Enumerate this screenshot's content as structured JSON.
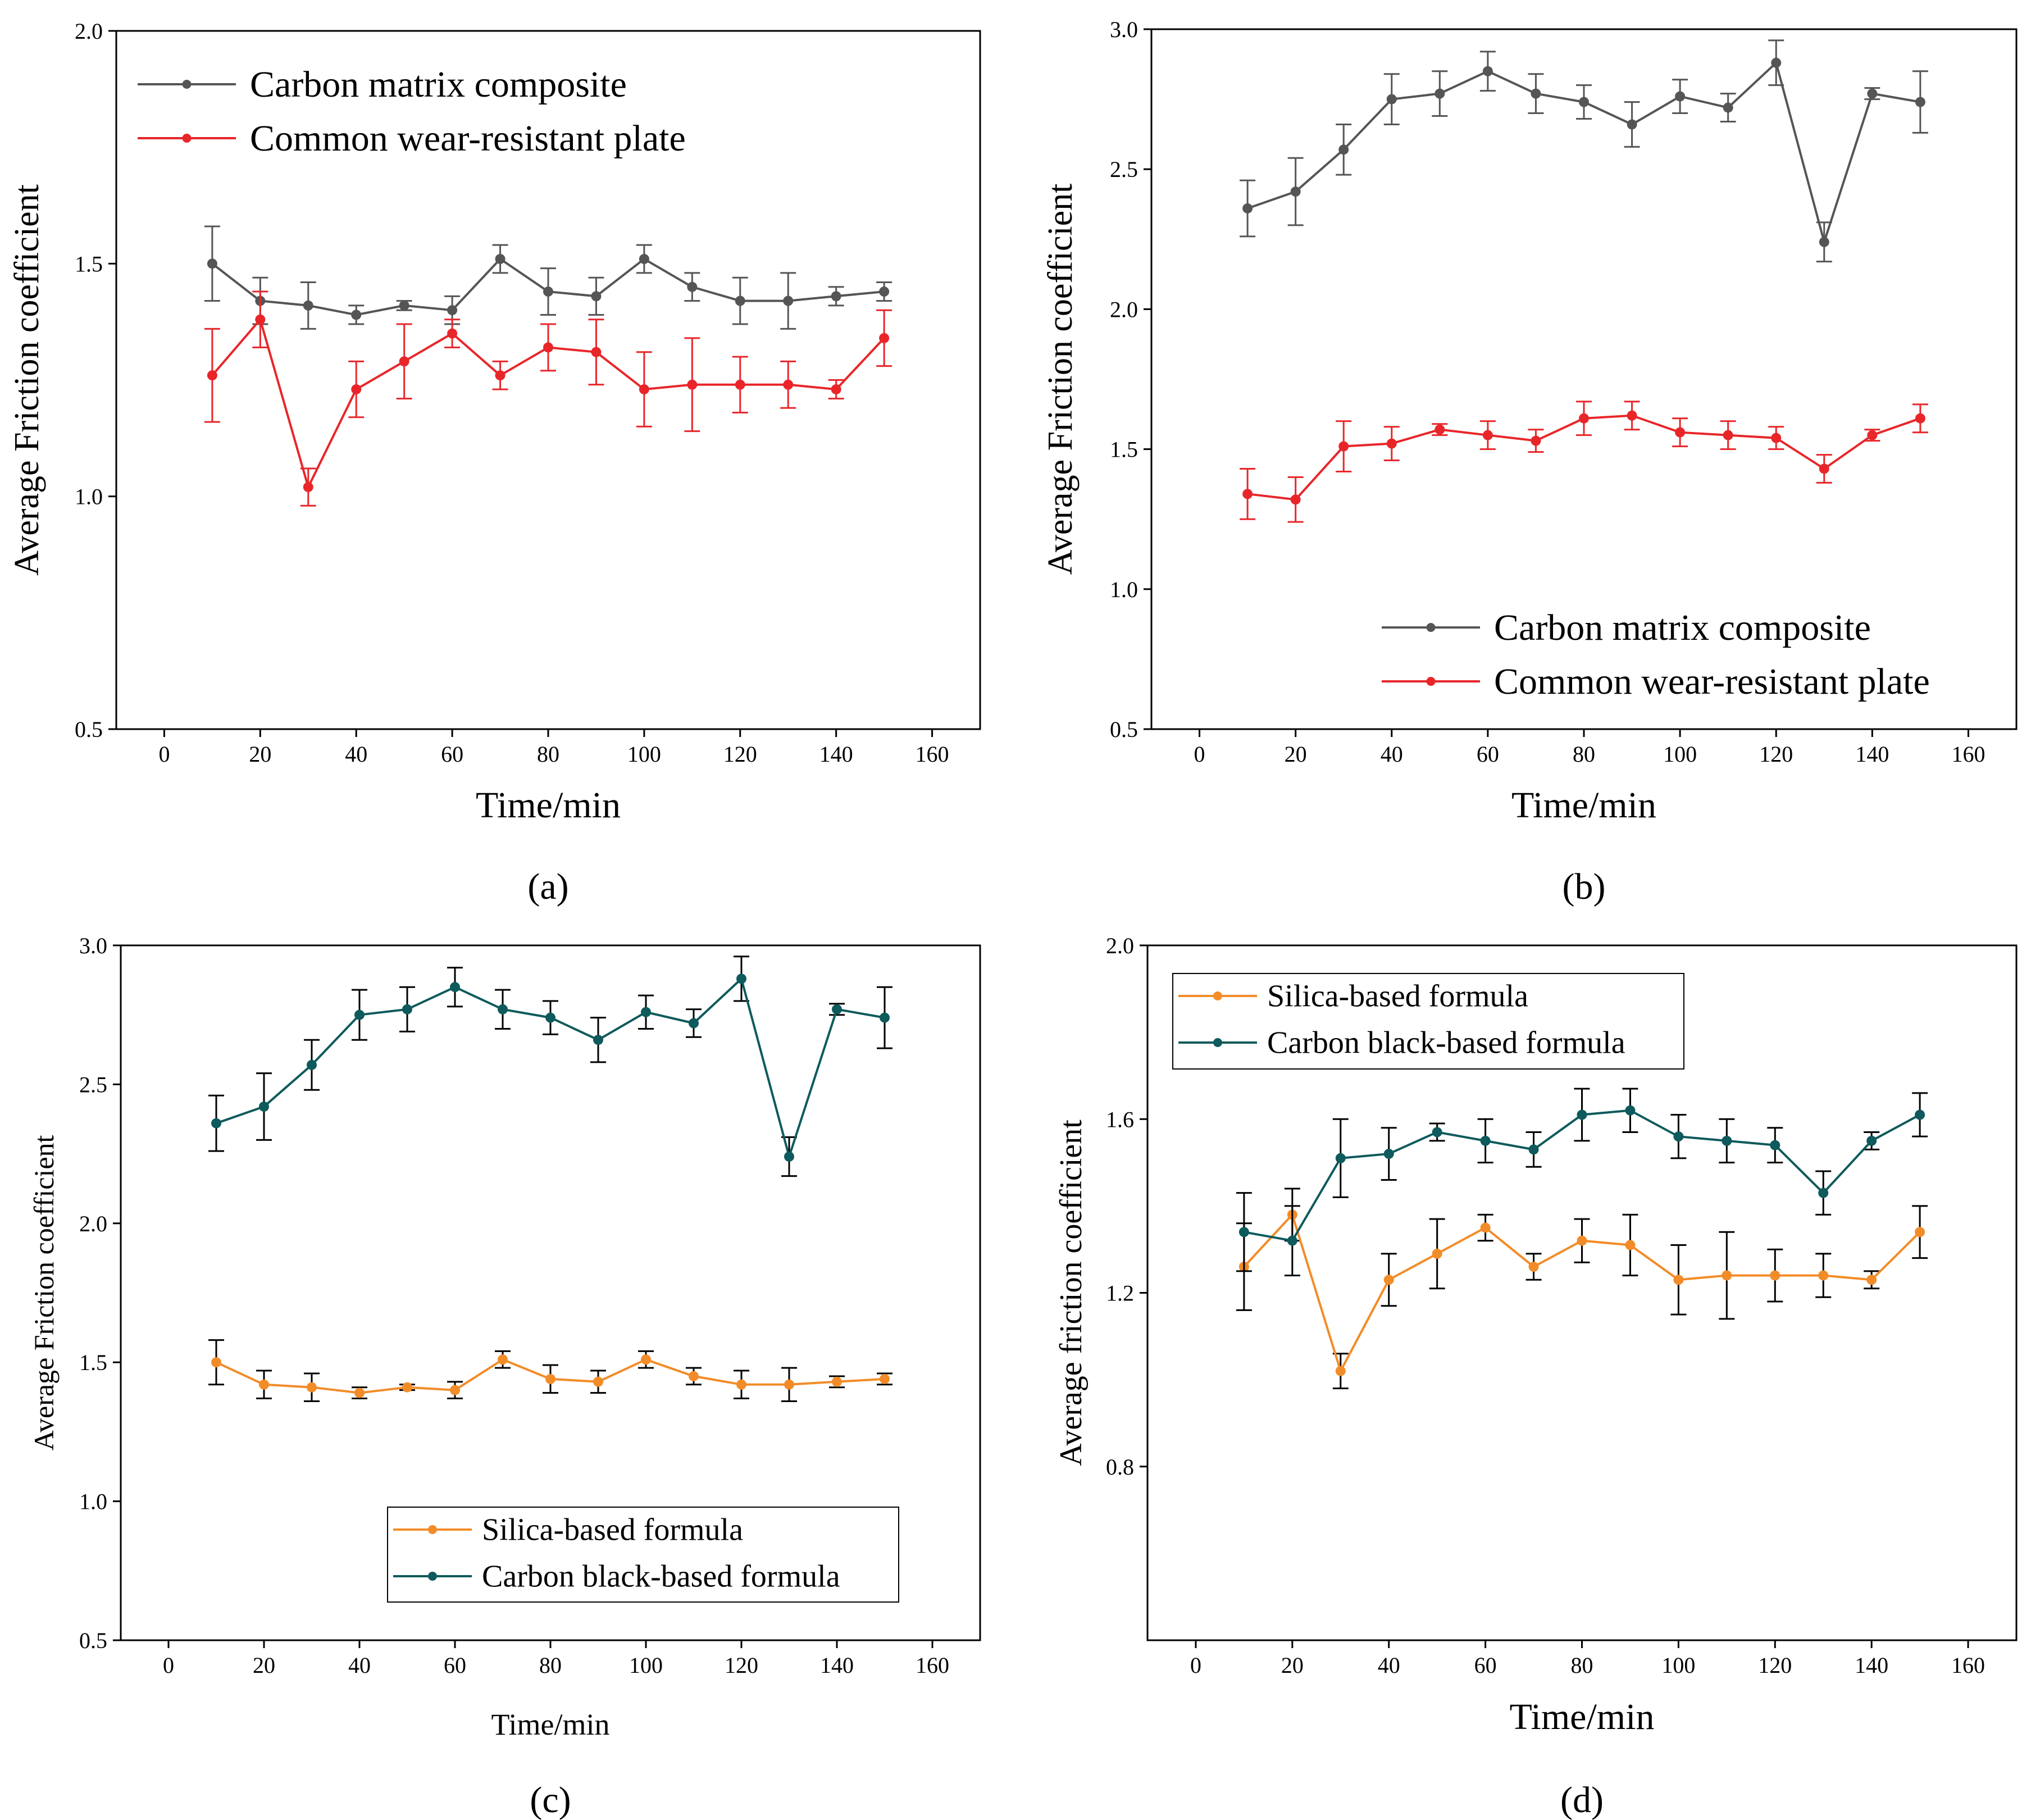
{
  "figure": {
    "panel_labels": [
      "(a)",
      "(b)",
      "(c)",
      "(d)"
    ]
  },
  "chart_data": [
    {
      "type": "line",
      "panel": "a",
      "xlabel": "Time/min",
      "ylabel": "Average Friction coefficient",
      "xlim": [
        -10,
        170
      ],
      "ylim": [
        0.5,
        2.0
      ],
      "xticks": [
        0,
        20,
        40,
        60,
        80,
        100,
        120,
        140,
        160
      ],
      "yticks": [
        0.5,
        1.0,
        1.5,
        2.0
      ],
      "ytick_labels": [
        "0.5",
        "1.0",
        "1.5",
        "2.0"
      ],
      "legend_position": "top-left",
      "legend_boxed": false,
      "x": [
        10,
        20,
        30,
        40,
        50,
        60,
        70,
        80,
        90,
        100,
        110,
        120,
        130,
        140,
        150
      ],
      "series": [
        {
          "name": "Carbon matrix composite",
          "color": "#555555",
          "values": [
            1.5,
            1.42,
            1.41,
            1.39,
            1.41,
            1.4,
            1.51,
            1.44,
            1.43,
            1.51,
            1.45,
            1.42,
            1.42,
            1.43,
            1.44
          ],
          "errors": [
            0.08,
            0.05,
            0.05,
            0.02,
            0.01,
            0.03,
            0.03,
            0.05,
            0.04,
            0.03,
            0.03,
            0.05,
            0.06,
            0.02,
            0.02
          ]
        },
        {
          "name": "Common wear-resistant plate",
          "color": "#e8262a",
          "values": [
            1.26,
            1.38,
            1.02,
            1.23,
            1.29,
            1.35,
            1.26,
            1.32,
            1.31,
            1.23,
            1.24,
            1.24,
            1.24,
            1.23,
            1.34
          ],
          "errors": [
            0.1,
            0.06,
            0.04,
            0.06,
            0.08,
            0.03,
            0.03,
            0.05,
            0.07,
            0.08,
            0.1,
            0.06,
            0.05,
            0.02,
            0.06
          ]
        }
      ]
    },
    {
      "type": "line",
      "panel": "b",
      "xlabel": "Time/min",
      "ylabel": "Average Friction coefficient",
      "xlim": [
        -10,
        170
      ],
      "ylim": [
        0.5,
        3.0
      ],
      "xticks": [
        0,
        20,
        40,
        60,
        80,
        100,
        120,
        140,
        160
      ],
      "yticks": [
        0.5,
        1.0,
        1.5,
        2.0,
        2.5,
        3.0
      ],
      "ytick_labels": [
        "0.5",
        "1.0",
        "1.5",
        "2.0",
        "2.5",
        "3.0"
      ],
      "legend_position": "bottom-right",
      "legend_boxed": false,
      "x": [
        10,
        20,
        30,
        40,
        50,
        60,
        70,
        80,
        90,
        100,
        110,
        120,
        130,
        140,
        150
      ],
      "series": [
        {
          "name": "Carbon matrix composite",
          "color": "#555555",
          "values": [
            2.36,
            2.42,
            2.57,
            2.75,
            2.77,
            2.85,
            2.77,
            2.74,
            2.66,
            2.76,
            2.72,
            2.88,
            2.24,
            2.77,
            2.74
          ],
          "errors": [
            0.1,
            0.12,
            0.09,
            0.09,
            0.08,
            0.07,
            0.07,
            0.06,
            0.08,
            0.06,
            0.05,
            0.08,
            0.07,
            0.02,
            0.11
          ]
        },
        {
          "name": "Common wear-resistant plate",
          "color": "#e8262a",
          "values": [
            1.34,
            1.32,
            1.51,
            1.52,
            1.57,
            1.55,
            1.53,
            1.61,
            1.62,
            1.56,
            1.55,
            1.54,
            1.43,
            1.55,
            1.61
          ],
          "errors": [
            0.09,
            0.08,
            0.09,
            0.06,
            0.02,
            0.05,
            0.04,
            0.06,
            0.05,
            0.05,
            0.05,
            0.04,
            0.05,
            0.02,
            0.05
          ]
        }
      ]
    },
    {
      "type": "line",
      "panel": "c",
      "xlabel": "Time/min",
      "ylabel": "Average Friction coefficient",
      "xlim": [
        -10,
        170
      ],
      "ylim": [
        0.5,
        3.0
      ],
      "xticks": [
        0,
        20,
        40,
        60,
        80,
        100,
        120,
        140,
        160
      ],
      "yticks": [
        0.5,
        1.0,
        1.5,
        2.0,
        2.5,
        3.0
      ],
      "ytick_labels": [
        "0.5",
        "1.0",
        "1.5",
        "2.0",
        "2.5",
        "3.0"
      ],
      "legend_position": "bottom-right",
      "legend_boxed": true,
      "x": [
        10,
        20,
        30,
        40,
        50,
        60,
        70,
        80,
        90,
        100,
        110,
        120,
        130,
        140,
        150
      ],
      "series": [
        {
          "name": "Silica-based formula",
          "color": "#f28c28",
          "values": [
            1.5,
            1.42,
            1.41,
            1.39,
            1.41,
            1.4,
            1.51,
            1.44,
            1.43,
            1.51,
            1.45,
            1.42,
            1.42,
            1.43,
            1.44
          ],
          "errors": [
            0.08,
            0.05,
            0.05,
            0.02,
            0.01,
            0.03,
            0.03,
            0.05,
            0.04,
            0.03,
            0.03,
            0.05,
            0.06,
            0.02,
            0.02
          ]
        },
        {
          "name": "Carbon black-based formula",
          "color": "#0e5a5c",
          "values": [
            2.36,
            2.42,
            2.57,
            2.75,
            2.77,
            2.85,
            2.77,
            2.74,
            2.66,
            2.76,
            2.72,
            2.88,
            2.24,
            2.77,
            2.74
          ],
          "errors": [
            0.1,
            0.12,
            0.09,
            0.09,
            0.08,
            0.07,
            0.07,
            0.06,
            0.08,
            0.06,
            0.05,
            0.08,
            0.07,
            0.02,
            0.11
          ]
        }
      ]
    },
    {
      "type": "line",
      "panel": "d",
      "xlabel": "Time/min",
      "ylabel": "Average friction coefficient",
      "xlim": [
        -10,
        170
      ],
      "ylim": [
        0.4,
        2.0
      ],
      "xticks": [
        0,
        20,
        40,
        60,
        80,
        100,
        120,
        140,
        160
      ],
      "yticks": [
        0.8,
        1.2,
        1.6,
        2.0
      ],
      "ytick_labels": [
        "0.8",
        "1.2",
        "1.6",
        "2.0"
      ],
      "legend_position": "top-left",
      "legend_boxed": true,
      "x": [
        10,
        20,
        30,
        40,
        50,
        60,
        70,
        80,
        90,
        100,
        110,
        120,
        130,
        140,
        150
      ],
      "series": [
        {
          "name": "Silica-based formula",
          "color": "#f28c28",
          "values": [
            1.26,
            1.38,
            1.02,
            1.23,
            1.29,
            1.35,
            1.26,
            1.32,
            1.31,
            1.23,
            1.24,
            1.24,
            1.24,
            1.23,
            1.34
          ],
          "errors": [
            0.1,
            0.06,
            0.04,
            0.06,
            0.08,
            0.03,
            0.03,
            0.05,
            0.07,
            0.08,
            0.1,
            0.06,
            0.05,
            0.02,
            0.06
          ]
        },
        {
          "name": "Carbon black-based formula",
          "color": "#0e5a5c",
          "values": [
            1.34,
            1.32,
            1.51,
            1.52,
            1.57,
            1.55,
            1.53,
            1.61,
            1.62,
            1.56,
            1.55,
            1.54,
            1.43,
            1.55,
            1.61
          ],
          "errors": [
            0.09,
            0.08,
            0.09,
            0.06,
            0.02,
            0.05,
            0.04,
            0.06,
            0.05,
            0.05,
            0.05,
            0.04,
            0.05,
            0.02,
            0.05
          ]
        }
      ]
    }
  ]
}
